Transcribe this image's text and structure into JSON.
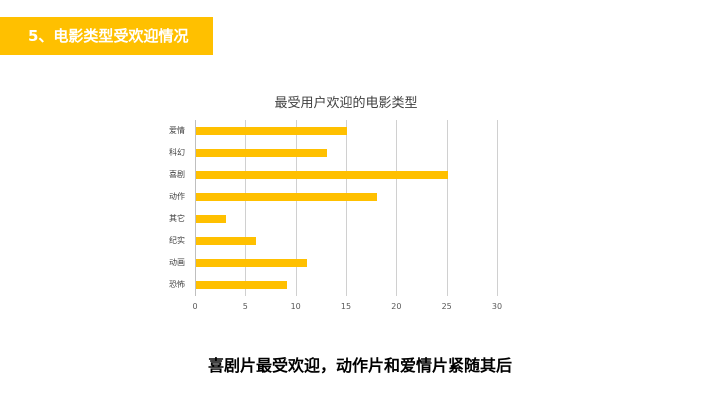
{
  "banner": {
    "title": "5、电影类型受欢迎情况",
    "color": "#FFC000"
  },
  "chart_data": {
    "type": "bar",
    "orientation": "horizontal",
    "title": "最受用户欢迎的电影类型",
    "categories": [
      "爱情",
      "科幻",
      "喜剧",
      "动作",
      "其它",
      "纪实",
      "动画",
      "恐怖"
    ],
    "values": [
      15,
      13,
      25,
      18,
      3,
      6,
      11,
      9
    ],
    "xlabel": "",
    "ylabel": "",
    "xlim": [
      0,
      30
    ],
    "xticks": [
      "0",
      "5",
      "10",
      "15",
      "20",
      "25",
      "30"
    ],
    "grid": true,
    "legend": "none",
    "bar_color": "#FFC000"
  },
  "conclusion": "喜剧片最受欢迎，动作片和爱情片紧随其后"
}
